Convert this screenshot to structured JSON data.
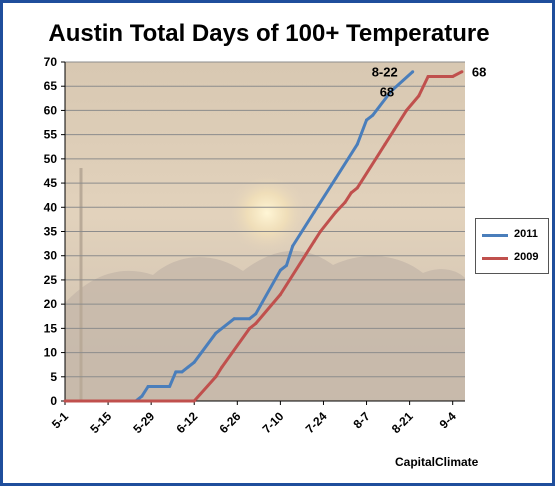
{
  "chart_data": {
    "type": "line",
    "title": "Austin Total Days of 100+ Temperature",
    "ylim": [
      0,
      70
    ],
    "y_ticks": [
      0,
      5,
      10,
      15,
      20,
      25,
      30,
      35,
      40,
      45,
      50,
      55,
      60,
      65,
      70
    ],
    "x_tick_labels": [
      "5-1",
      "5-15",
      "5-29",
      "6-12",
      "6-26",
      "7-10",
      "7-24",
      "8-7",
      "8-21",
      "9-4"
    ],
    "x_tick_days": [
      0,
      14,
      28,
      42,
      56,
      70,
      84,
      98,
      112,
      126
    ],
    "xlim": [
      0,
      130
    ],
    "grid": true,
    "legend": "right",
    "series": [
      {
        "name": "2011",
        "color": "#4a7ebb",
        "x": [
          "5-1",
          "5-24",
          "5-26",
          "5-28",
          "6-4",
          "6-6",
          "6-8",
          "6-10",
          "6-12",
          "6-19",
          "6-25",
          "6-30",
          "7-2",
          "7-10",
          "7-12",
          "7-14",
          "7-21",
          "7-28",
          "8-4",
          "8-7",
          "8-9",
          "8-15",
          "8-22"
        ],
        "values": [
          0,
          0,
          1,
          3,
          3,
          6,
          6,
          7,
          8,
          14,
          17,
          17,
          18,
          27,
          28,
          32,
          39,
          46,
          53,
          58,
          59,
          64,
          68
        ]
      },
      {
        "name": "2009",
        "color": "#c0504d",
        "x": [
          "5-1",
          "6-12",
          "6-19",
          "6-21",
          "6-30",
          "7-2",
          "7-10",
          "7-21",
          "7-23",
          "7-28",
          "7-31",
          "8-2",
          "8-4",
          "8-13",
          "8-16",
          "8-20",
          "8-24",
          "8-27",
          "9-4",
          "9-7"
        ],
        "values": [
          0,
          0,
          5,
          7,
          15,
          16,
          22,
          33,
          35,
          39,
          41,
          43,
          44,
          53,
          56,
          60,
          63,
          67,
          67,
          68
        ]
      }
    ],
    "annotations": [
      {
        "text": "8-22",
        "series": "2011"
      },
      {
        "text": "68",
        "series": "2011"
      },
      {
        "text": "68",
        "series": "2009"
      }
    ]
  },
  "credit": "CapitalClimate"
}
